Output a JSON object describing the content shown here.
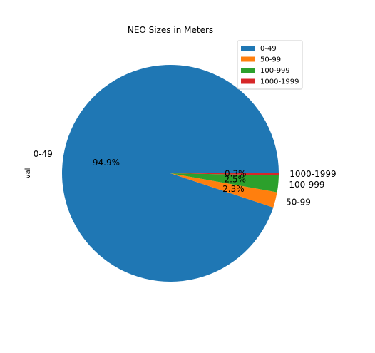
{
  "chart_data": {
    "type": "pie",
    "title": "NEO Sizes in Meters",
    "ylabel": "val",
    "labels": [
      "0-49",
      "50-99",
      "100-999",
      "1000-1999"
    ],
    "values": [
      94.9,
      2.3,
      2.5,
      0.3
    ],
    "pct_labels": [
      "94.9%",
      "2.3%",
      "2.5%",
      "0.3%"
    ],
    "colors": [
      "#1f77b4",
      "#ff7f0e",
      "#2ca02c",
      "#d62728"
    ],
    "legend": {
      "placement": "top-right",
      "entries": [
        "0-49",
        "50-99",
        "100-999",
        "1000-1999"
      ]
    }
  }
}
